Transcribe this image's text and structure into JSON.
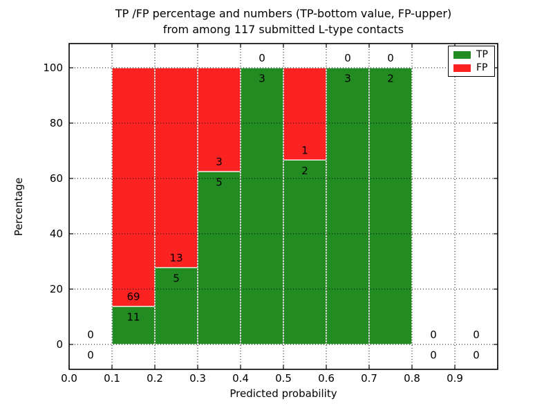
{
  "chart_data": {
    "type": "bar",
    "stacked": true,
    "title_line1": "TP /FP percentage and numbers (TP-bottom value, FP-upper)",
    "title_line2": "from among 117 submitted L-type contacts",
    "xlabel": "Predicted probability",
    "ylabel": "Percentage",
    "categories": [
      "0.0-0.1",
      "0.1-0.2",
      "0.2-0.3",
      "0.3-0.4",
      "0.4-0.5",
      "0.5-0.6",
      "0.6-0.7",
      "0.7-0.8",
      "0.8-0.9",
      "0.9-1.0"
    ],
    "bin_edges": [
      0.0,
      0.1,
      0.2,
      0.3,
      0.4,
      0.5,
      0.6,
      0.7,
      0.8,
      0.9,
      1.0
    ],
    "series": [
      {
        "name": "TP",
        "color": "#228B22",
        "counts": [
          0,
          11,
          5,
          5,
          3,
          2,
          3,
          2,
          0,
          0
        ],
        "percent": [
          0,
          13.75,
          27.78,
          62.5,
          100,
          66.67,
          100,
          100,
          0,
          0
        ]
      },
      {
        "name": "FP",
        "color": "#FB2222",
        "counts": [
          0,
          69,
          13,
          3,
          0,
          1,
          0,
          0,
          0,
          0
        ],
        "percent": [
          0,
          86.25,
          72.22,
          37.5,
          0,
          33.33,
          0,
          0,
          0,
          0
        ]
      }
    ],
    "x_tick_labels": [
      "0.0",
      "0.1",
      "0.2",
      "0.3",
      "0.4",
      "0.5",
      "0.6",
      "0.7",
      "0.8",
      "0.9"
    ],
    "y_ticks": [
      0,
      20,
      40,
      60,
      80,
      100
    ],
    "xlim": [
      0.0,
      1.0
    ],
    "ylim": [
      -9,
      109
    ],
    "grid": "dotted black, both axes",
    "legend_position": "upper right",
    "annotation_note": "TP-bottom value, FP-upper"
  }
}
